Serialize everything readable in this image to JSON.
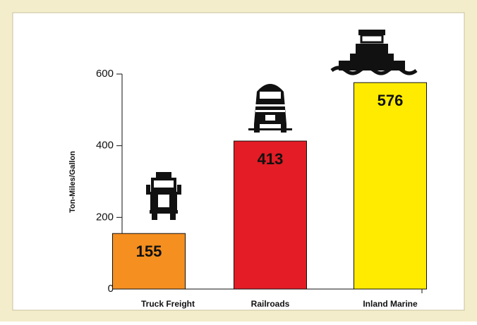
{
  "chart_data": {
    "type": "bar",
    "y_axis_label": "Ton-Miles/Gallon",
    "categories": [
      "Truck Freight",
      "Railroads",
      "Inland Marine"
    ],
    "values": [
      155,
      413,
      576
    ],
    "colors": [
      "#f58f1f",
      "#e31c25",
      "#ffeb00"
    ],
    "ylim": [
      0,
      600
    ],
    "yticks": [
      0,
      200,
      400,
      600
    ],
    "grid": false
  }
}
